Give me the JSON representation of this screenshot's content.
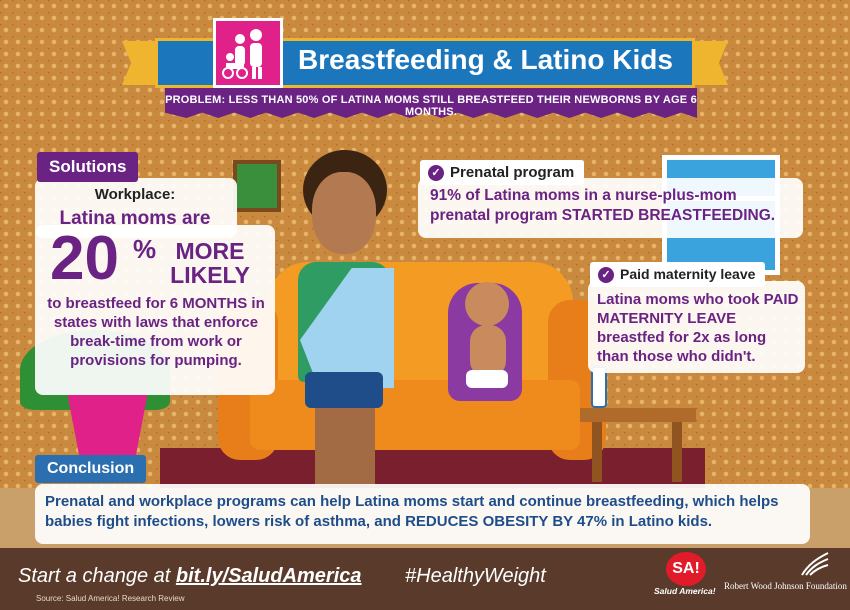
{
  "header": {
    "title": "Breastfeeding & Latino Kids",
    "problem": "PROBLEM: LESS THAN 50% OF LATINA MOMS STILL BREASTFEED THEIR NEWBORNS BY AGE 6 MONTHS."
  },
  "solutions": {
    "tab": "Solutions",
    "heading": "Workplace:",
    "line1": "Latina moms are",
    "stat_number": "20",
    "stat_percent": "%",
    "stat_more": "MORE",
    "stat_likely": "LIKELY",
    "body": "to breastfeed for 6 MONTHS in states with laws that enforce break-time from work or provisions for pumping."
  },
  "prenatal": {
    "tab": "Prenatal program",
    "text": "91% of Latina moms in a nurse-plus-mom prenatal program STARTED BREASTFEEDING."
  },
  "maternity_leave": {
    "tab": "Paid maternity leave",
    "text": "Latina moms who took PAID MATERNITY LEAVE breastfed for 2x as long than those who didn't."
  },
  "conclusion": {
    "tab": "Conclusion",
    "text": "Prenatal and workplace programs can help Latina moms start and continue breastfeeding, which helps babies fight infections, lowers risk of asthma, and REDUCES OBESITY BY 47% in Latino kids."
  },
  "footer": {
    "cta_prefix": "Start a change at ",
    "cta_link": "bit.ly/SaludAmerica",
    "hashtag": "#HealthyWeight",
    "source": "Source: Salud America! Research Review",
    "sa_logo": "SA!",
    "sa_tag": "Salud America!",
    "rwjf": "Robert Wood Johnson Foundation"
  },
  "colors": {
    "purple": "#6a2383",
    "blue": "#2b6fb0",
    "magenta": "#e0218a",
    "gold": "#f0b52e"
  },
  "icons": [
    "family-icon",
    "check-icon",
    "rwjf-icon"
  ]
}
